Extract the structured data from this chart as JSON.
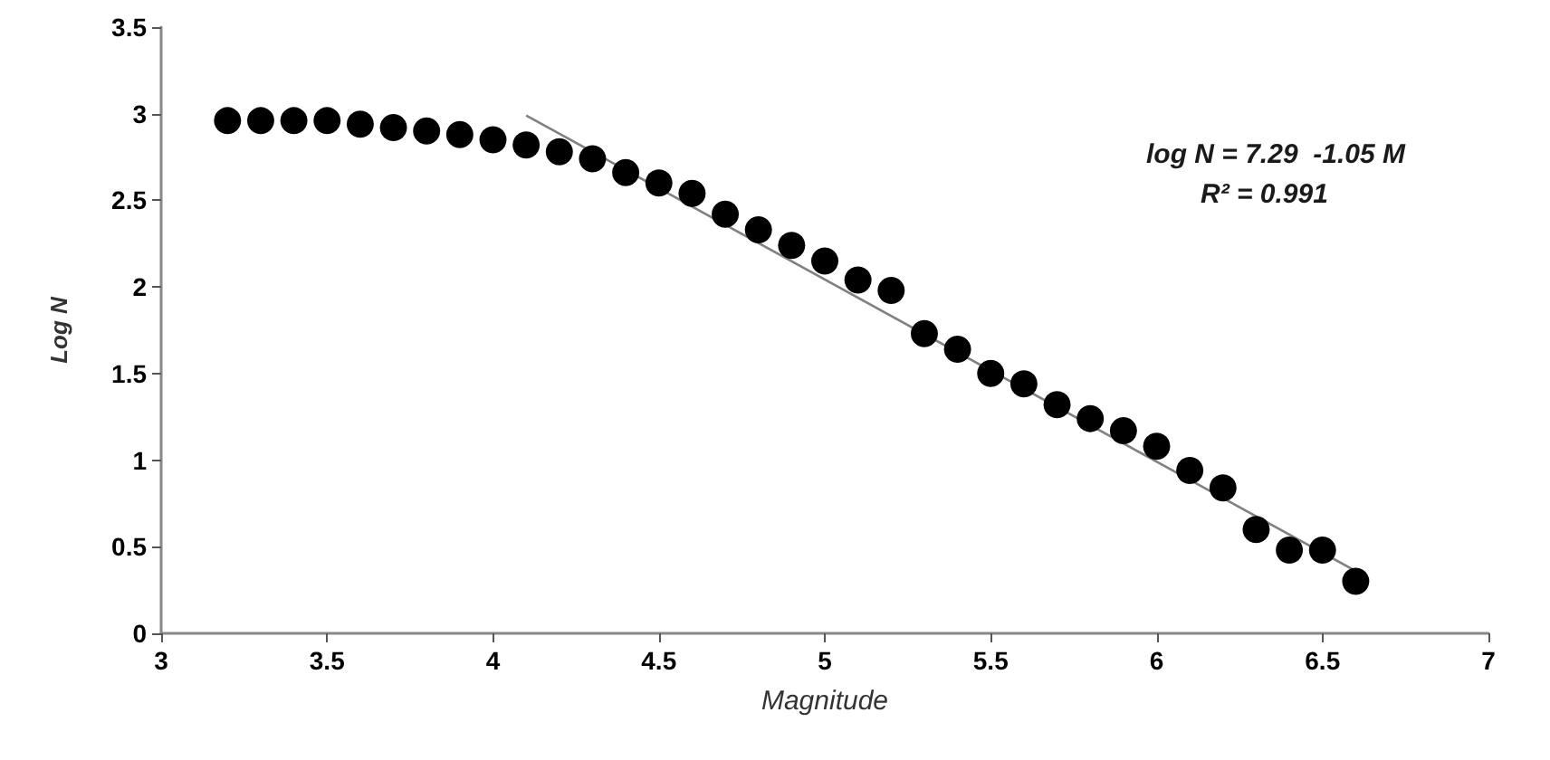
{
  "chart_data": {
    "type": "scatter",
    "xlabel": "Magnitude",
    "ylabel": "Log N",
    "annotations": [
      "log N = 7.29  -1.05 M",
      "R² = 0.991"
    ],
    "xlim": [
      3,
      7
    ],
    "xticks": [
      3,
      3.5,
      4,
      4.5,
      5,
      5.5,
      6,
      6.5,
      7
    ],
    "ylim": [
      0,
      3.5
    ],
    "yticks": [
      0,
      0.5,
      1,
      1.5,
      2,
      2.5,
      3,
      3.5
    ],
    "grid": false,
    "series": [
      {
        "marker": "circle",
        "color": "#000000",
        "x": [
          3.2,
          3.3,
          3.4,
          3.5,
          3.6,
          3.7,
          3.8,
          3.9,
          4.0,
          4.1,
          4.2,
          4.3,
          4.4,
          4.5,
          4.6,
          4.7,
          4.8,
          4.9,
          5.0,
          5.1,
          5.2,
          5.3,
          5.4,
          5.5,
          5.6,
          5.7,
          5.8,
          5.9,
          6.0,
          6.1,
          6.2,
          6.3,
          6.4,
          6.5,
          6.6
        ],
        "values": [
          2.96,
          2.96,
          2.96,
          2.96,
          2.94,
          2.92,
          2.9,
          2.88,
          2.85,
          2.82,
          2.78,
          2.74,
          2.66,
          2.6,
          2.54,
          2.42,
          2.33,
          2.24,
          2.15,
          2.04,
          1.98,
          1.73,
          1.64,
          1.5,
          1.44,
          1.32,
          1.24,
          1.17,
          1.08,
          0.94,
          0.84,
          0.6,
          0.48,
          0.48,
          0.3
        ]
      },
      {
        "type": "line",
        "marker": "none",
        "color": "#808080",
        "x": [
          4.1,
          6.6
        ],
        "values": [
          2.99,
          0.36
        ]
      }
    ]
  }
}
